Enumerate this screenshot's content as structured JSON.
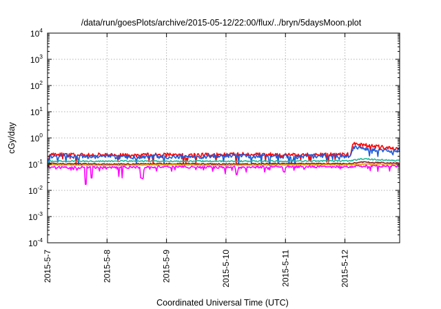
{
  "chart_data": {
    "type": "line",
    "title": "/data/run/goesPlots/archive/2015-05-12/22:00/flux/../bryn/5daysMoon.plot",
    "xlabel": "Coordinated Universal Time (UTC)",
    "ylabel": "cGy/day",
    "yscale": "log",
    "ylim": [
      0.0001,
      10000
    ],
    "xlim": [
      "2015-05-07",
      "2015-05-12 22:00"
    ],
    "grid": true,
    "x_ticks": [
      {
        "x": 0,
        "label": "2015-5-7"
      },
      {
        "x": 1,
        "label": "2015-5-8"
      },
      {
        "x": 2,
        "label": "2015-5-9"
      },
      {
        "x": 3,
        "label": "2015-5-10"
      },
      {
        "x": 4,
        "label": "2015-5-11"
      },
      {
        "x": 5,
        "label": "2015-5-12"
      }
    ],
    "y_ticks": [
      {
        "exp": -4,
        "base": "10",
        "sup": "-4"
      },
      {
        "exp": -3,
        "base": "10",
        "sup": "-3"
      },
      {
        "exp": -2,
        "base": "10",
        "sup": "-2"
      },
      {
        "exp": -1,
        "base": "10",
        "sup": "-1"
      },
      {
        "exp": 0,
        "base": "10",
        "sup": "0"
      },
      {
        "exp": 1,
        "base": "10",
        "sup": "1"
      },
      {
        "exp": 2,
        "base": "10",
        "sup": "2"
      },
      {
        "exp": 3,
        "base": "10",
        "sup": "3"
      },
      {
        "exp": 4,
        "base": "10",
        "sup": "4"
      }
    ],
    "series": [
      {
        "color": "#ff0000",
        "keys": [
          [
            0.0,
            0.14
          ],
          [
            0.04,
            0.24
          ],
          [
            0.3,
            0.23
          ],
          [
            0.6,
            0.22
          ],
          [
            1.0,
            0.23
          ],
          [
            1.4,
            0.21
          ],
          [
            1.8,
            0.23
          ],
          [
            2.3,
            0.22
          ],
          [
            2.8,
            0.23
          ],
          [
            3.3,
            0.24
          ],
          [
            3.8,
            0.23
          ],
          [
            4.2,
            0.22
          ],
          [
            4.7,
            0.24
          ],
          [
            5.1,
            0.24
          ],
          [
            5.14,
            0.6
          ],
          [
            5.25,
            0.58
          ],
          [
            5.4,
            0.5
          ],
          [
            5.6,
            0.45
          ],
          [
            5.8,
            0.38
          ],
          [
            5.92,
            0.42
          ]
        ],
        "noise": 0.18,
        "dips": 0.08,
        "dip_depth": 0.55,
        "seed": 11
      },
      {
        "color": "#1e5bd8",
        "keys": [
          [
            0.0,
            0.13
          ],
          [
            0.04,
            0.2
          ],
          [
            0.3,
            0.2
          ],
          [
            0.6,
            0.19
          ],
          [
            1.0,
            0.2
          ],
          [
            1.4,
            0.18
          ],
          [
            1.8,
            0.2
          ],
          [
            2.3,
            0.19
          ],
          [
            2.8,
            0.2
          ],
          [
            3.3,
            0.21
          ],
          [
            3.8,
            0.2
          ],
          [
            4.2,
            0.19
          ],
          [
            4.7,
            0.21
          ],
          [
            5.1,
            0.21
          ],
          [
            5.14,
            0.45
          ],
          [
            5.25,
            0.42
          ],
          [
            5.4,
            0.38
          ],
          [
            5.6,
            0.34
          ],
          [
            5.8,
            0.3
          ],
          [
            5.92,
            0.34
          ]
        ],
        "noise": 0.18,
        "dips": 0.1,
        "dip_depth": 0.55,
        "seed": 23
      },
      {
        "color": "#1fb89a",
        "keys": [
          [
            0.0,
            0.11
          ],
          [
            0.04,
            0.13
          ],
          [
            1.0,
            0.13
          ],
          [
            2.0,
            0.13
          ],
          [
            3.0,
            0.13
          ],
          [
            4.0,
            0.13
          ],
          [
            5.1,
            0.135
          ],
          [
            5.3,
            0.16
          ],
          [
            5.5,
            0.15
          ],
          [
            5.92,
            0.135
          ]
        ],
        "noise": 0.06,
        "dips": 0.0,
        "dip_depth": 0.0,
        "seed": 37
      },
      {
        "color": "#8b1a1a",
        "keys": [
          [
            0.0,
            0.1
          ],
          [
            0.04,
            0.105
          ],
          [
            1.0,
            0.1
          ],
          [
            2.0,
            0.105
          ],
          [
            3.0,
            0.1
          ],
          [
            4.0,
            0.105
          ],
          [
            5.1,
            0.105
          ],
          [
            5.3,
            0.12
          ],
          [
            5.5,
            0.115
          ],
          [
            5.92,
            0.11
          ]
        ],
        "noise": 0.05,
        "dips": 0.0,
        "dip_depth": 0.0,
        "seed": 41
      },
      {
        "color": "#e8a000",
        "keys": [
          [
            0.0,
            0.09
          ],
          [
            0.04,
            0.095
          ],
          [
            1.0,
            0.09
          ],
          [
            2.0,
            0.095
          ],
          [
            3.0,
            0.09
          ],
          [
            4.0,
            0.095
          ],
          [
            5.1,
            0.095
          ],
          [
            5.3,
            0.1
          ],
          [
            5.92,
            0.1
          ]
        ],
        "noise": 0.04,
        "dips": 0.0,
        "dip_depth": 0.0,
        "seed": 53
      },
      {
        "color": "#ff00ff",
        "keys": [
          [
            0.0,
            0.08
          ],
          [
            0.04,
            0.075
          ],
          [
            1.0,
            0.075
          ],
          [
            2.0,
            0.08
          ],
          [
            3.0,
            0.075
          ],
          [
            4.0,
            0.08
          ],
          [
            5.1,
            0.08
          ],
          [
            5.3,
            0.085
          ],
          [
            5.92,
            0.085
          ]
        ],
        "noise": 0.1,
        "dips": 0.12,
        "dip_depth": 0.45,
        "seed": 67,
        "spikes": [
          [
            0.64,
            0.017
          ],
          [
            0.74,
            0.03
          ],
          [
            1.2,
            0.034
          ],
          [
            1.25,
            0.03
          ],
          [
            1.57,
            0.03
          ],
          [
            1.6,
            0.028
          ],
          [
            3.18,
            0.04
          ],
          [
            3.98,
            0.05
          ]
        ]
      }
    ]
  }
}
